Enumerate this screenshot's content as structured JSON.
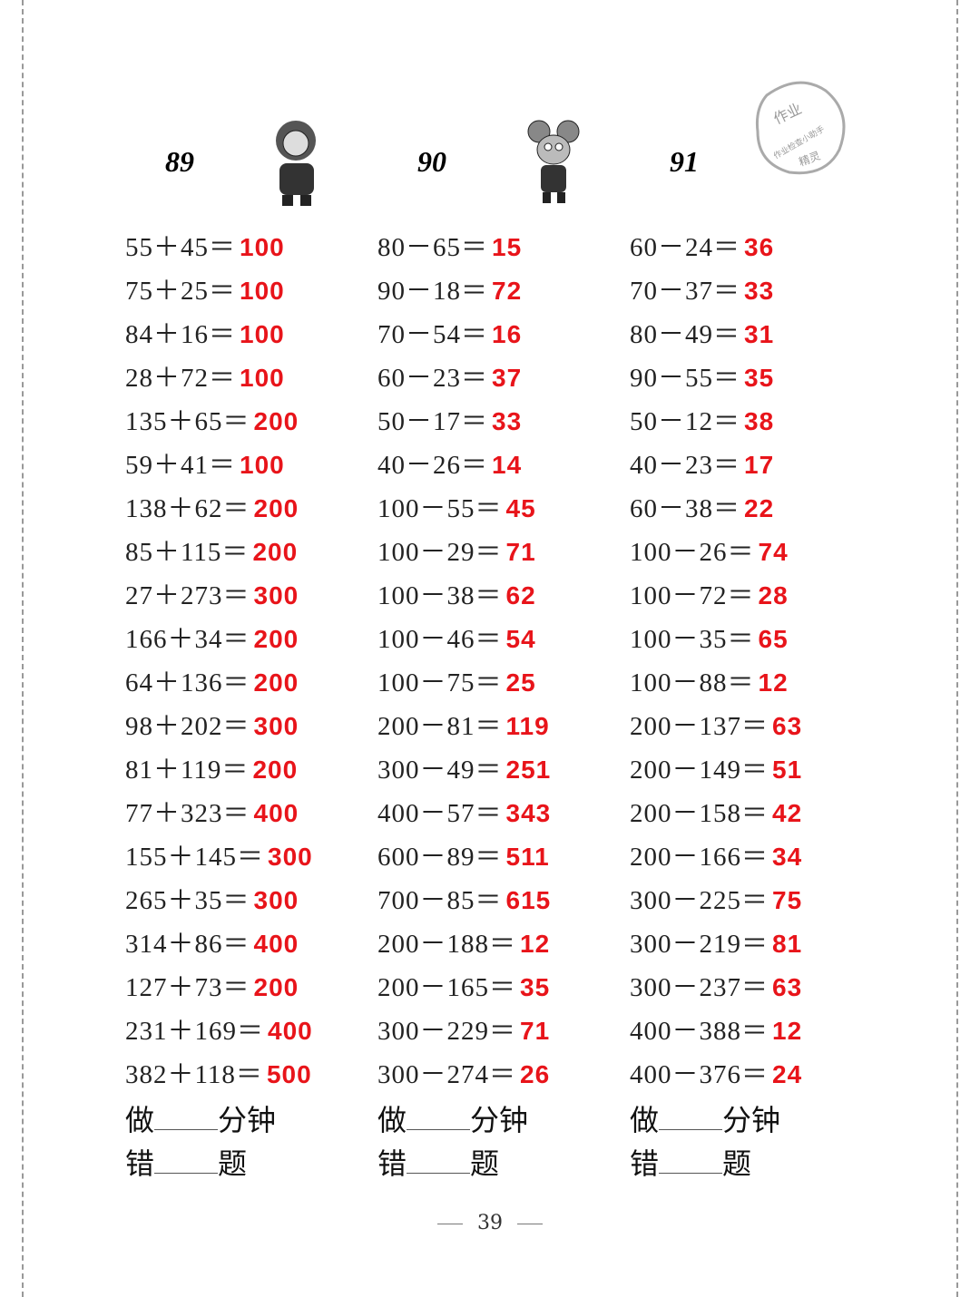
{
  "columns": [
    {
      "number": "89",
      "mascot": "lion-cartoon",
      "problems": [
        {
          "q": "55＋45＝",
          "a": "100"
        },
        {
          "q": "75＋25＝",
          "a": "100"
        },
        {
          "q": "84＋16＝",
          "a": "100"
        },
        {
          "q": "28＋72＝",
          "a": "100"
        },
        {
          "q": "135＋65＝",
          "a": "200"
        },
        {
          "q": "59＋41＝",
          "a": "100"
        },
        {
          "q": "138＋62＝",
          "a": "200"
        },
        {
          "q": "85＋115＝",
          "a": "200"
        },
        {
          "q": "27＋273＝",
          "a": "300"
        },
        {
          "q": "166＋34＝",
          "a": "200"
        },
        {
          "q": "64＋136＝",
          "a": "200"
        },
        {
          "q": "98＋202＝",
          "a": "300"
        },
        {
          "q": "81＋119＝",
          "a": "200"
        },
        {
          "q": "77＋323＝",
          "a": "400"
        },
        {
          "q": "155＋145＝",
          "a": "300"
        },
        {
          "q": "265＋35＝",
          "a": "300"
        },
        {
          "q": "314＋86＝",
          "a": "400"
        },
        {
          "q": "127＋73＝",
          "a": "200"
        },
        {
          "q": "231＋169＝",
          "a": "400"
        },
        {
          "q": "382＋118＝",
          "a": "500"
        }
      ]
    },
    {
      "number": "90",
      "mascot": "mouse-cartoon",
      "problems": [
        {
          "q": "80－65＝",
          "a": "15"
        },
        {
          "q": "90－18＝",
          "a": "72"
        },
        {
          "q": "70－54＝",
          "a": "16"
        },
        {
          "q": "60－23＝",
          "a": "37"
        },
        {
          "q": "50－17＝",
          "a": "33"
        },
        {
          "q": "40－26＝",
          "a": "14"
        },
        {
          "q": "100－55＝",
          "a": "45"
        },
        {
          "q": "100－29＝",
          "a": "71"
        },
        {
          "q": "100－38＝",
          "a": "62"
        },
        {
          "q": "100－46＝",
          "a": "54"
        },
        {
          "q": "100－75＝",
          "a": "25"
        },
        {
          "q": "200－81＝",
          "a": "119"
        },
        {
          "q": "300－49＝",
          "a": "251"
        },
        {
          "q": "400－57＝",
          "a": "343"
        },
        {
          "q": "600－89＝",
          "a": "511"
        },
        {
          "q": "700－85＝",
          "a": "615"
        },
        {
          "q": "200－188＝",
          "a": "12"
        },
        {
          "q": "200－165＝",
          "a": "35"
        },
        {
          "q": "300－229＝",
          "a": "71"
        },
        {
          "q": "300－274＝",
          "a": "26"
        }
      ]
    },
    {
      "number": "91",
      "mascot": "",
      "problems": [
        {
          "q": "60－24＝",
          "a": "36"
        },
        {
          "q": "70－37＝",
          "a": "33"
        },
        {
          "q": "80－49＝",
          "a": "31"
        },
        {
          "q": "90－55＝",
          "a": "35"
        },
        {
          "q": "50－12＝",
          "a": "38"
        },
        {
          "q": "40－23＝",
          "a": "17"
        },
        {
          "q": "60－38＝",
          "a": "22"
        },
        {
          "q": "100－26＝",
          "a": "74"
        },
        {
          "q": "100－72＝",
          "a": "28"
        },
        {
          "q": "100－35＝",
          "a": "65"
        },
        {
          "q": "100－88＝",
          "a": "12"
        },
        {
          "q": "200－137＝",
          "a": "63"
        },
        {
          "q": "200－149＝",
          "a": "51"
        },
        {
          "q": "200－158＝",
          "a": "42"
        },
        {
          "q": "200－166＝",
          "a": "34"
        },
        {
          "q": "300－225＝",
          "a": "75"
        },
        {
          "q": "300－219＝",
          "a": "81"
        },
        {
          "q": "300－237＝",
          "a": "63"
        },
        {
          "q": "400－388＝",
          "a": "12"
        },
        {
          "q": "400－376＝",
          "a": "24"
        }
      ]
    }
  ],
  "footer": {
    "do": "做",
    "minutes": "分钟",
    "wrong": "错",
    "questions": "题"
  },
  "page_number": "39",
  "stamp": {
    "text": "作业 作业检查小助手 精灵"
  },
  "answer_color": "#e8141a"
}
